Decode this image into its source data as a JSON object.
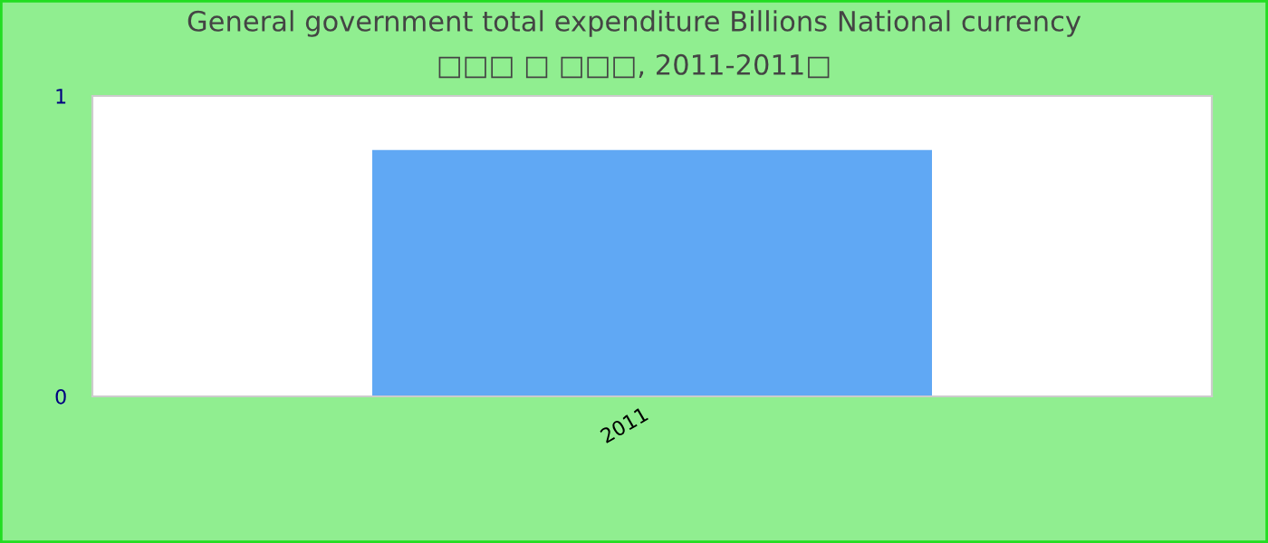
{
  "chart_data": {
    "type": "bar",
    "title": "General government total expenditure Billions National currency",
    "subtitle": "□□□ □ □□□, 2011-2011□",
    "categories": [
      "2011"
    ],
    "series": [
      {
        "color": "#60a8f4",
        "values": [
          0.82
        ]
      }
    ],
    "ylim": [
      0,
      1
    ],
    "yticks": [
      0,
      1
    ],
    "grid": false,
    "legend": false
  }
}
